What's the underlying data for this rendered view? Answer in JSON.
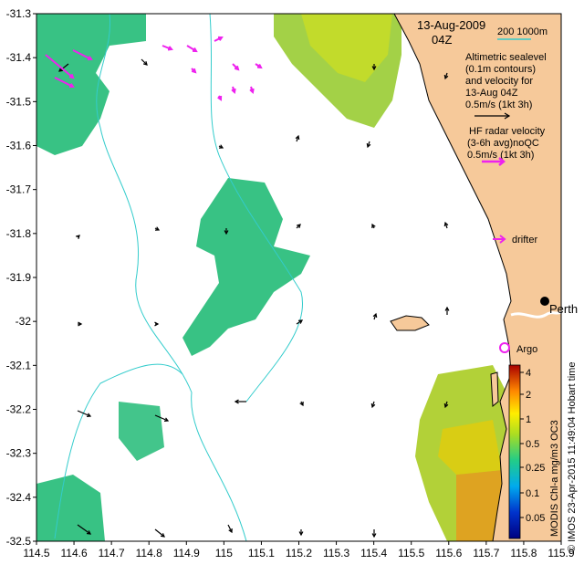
{
  "map": {
    "date": "13-Aug-2009",
    "time": "04Z",
    "bathy_legend": "200   1000m",
    "bathy_legend_color": "#33cccc",
    "land_color": "#f6c99a",
    "altimetry_lines": [
      "Altimetric sealevel",
      "(0.1m contours)",
      "and velocity for",
      "13-Aug 04Z",
      "0.5m/s (1kt 3h)"
    ],
    "radar_lines": [
      "HF radar velocity",
      "(3-6h avg)noQC",
      "0.5m/s (1kt 3h)"
    ],
    "radar_color": "#ee22ee",
    "drifter_label": "drifter",
    "argo_label": "Argo",
    "city_label": "Perth",
    "side_note": "© IMOS 23-Apr-2015 11:49:04 Hobart time",
    "colorbar": {
      "title": "MODIS Chl-a mg/m3 OC3",
      "ticks": [
        "4",
        "2",
        "1",
        "0.5",
        "0.25",
        "0.1",
        "0.05"
      ]
    },
    "axes": {
      "lon_ticks": [
        "114.5",
        "114.6",
        "114.7",
        "114.8",
        "114.9",
        "115",
        "115.1",
        "115.2",
        "115.3",
        "115.4",
        "115.5",
        "115.6",
        "115.7",
        "115.8",
        "115.9"
      ],
      "lat_ticks": [
        "-31.3",
        "-31.4",
        "-31.5",
        "-31.6",
        "-31.7",
        "-31.8",
        "-31.9",
        "-32",
        "-32.1",
        "-32.2",
        "-32.3",
        "-32.4",
        "-32.5"
      ],
      "lon_range": [
        114.5,
        115.9
      ],
      "lat_range": [
        -32.5,
        -31.3
      ]
    }
  }
}
